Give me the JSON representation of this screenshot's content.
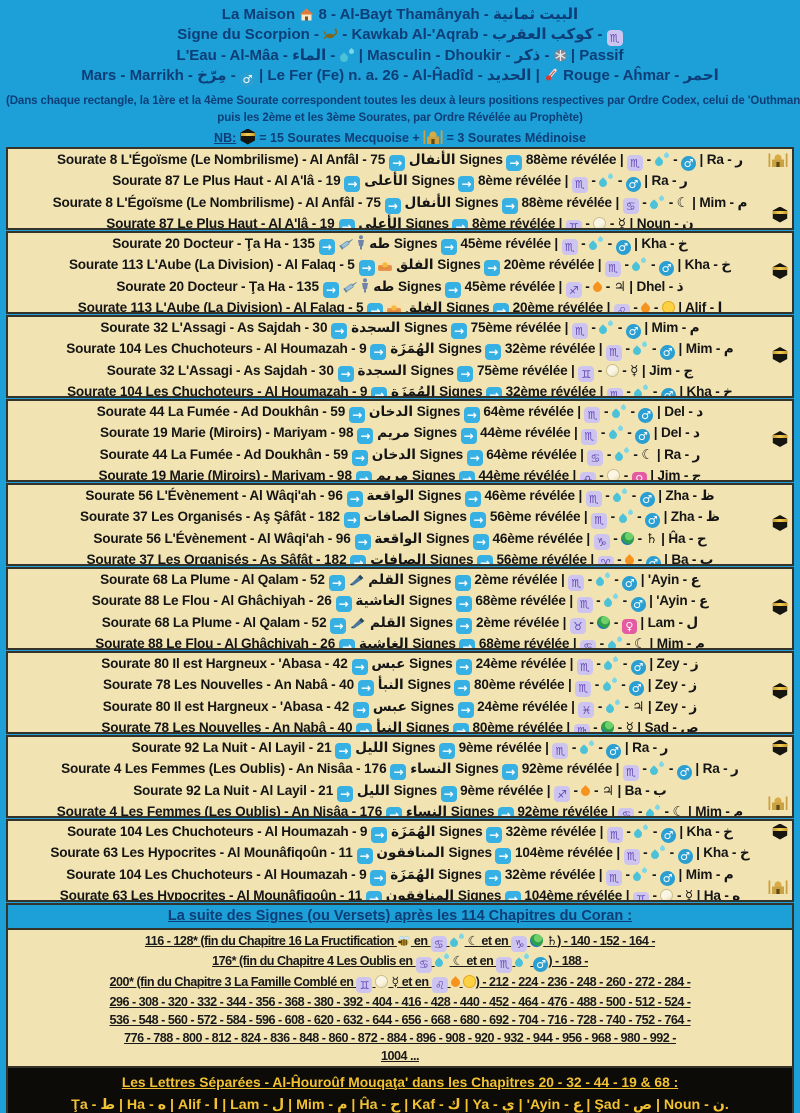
{
  "colors": {
    "blue": "#1d9fd8",
    "navy": "#0d3e77",
    "cream": "#f2e4b2",
    "border": "#35332a",
    "black_band": "#0c0b08",
    "gold": "#f2c233"
  },
  "header": {
    "title_lines": [
      [
        {
          "t": "La Maison "
        },
        {
          "icon": "house-icon"
        },
        {
          "t": " 8 - Al-Bayt Thamânyah - البيت ثمانية"
        }
      ],
      [
        {
          "t": "Signe du Scorpion - "
        },
        {
          "icon": "scorpion-icon"
        },
        {
          "t": " - Kawkab Al-'Aqrab - كوكب العقرب - "
        },
        {
          "icon": "zodiac-scorpio"
        }
      ],
      [
        {
          "t": "L'Eau - Al-Mâa - الماء - "
        },
        {
          "icon": "water-icon"
        },
        {
          "t": " | Masculin - Dhoukir - ذكر - "
        },
        {
          "icon": "masculine-symbol-icon"
        },
        {
          "t": " | Passif"
        }
      ],
      [
        {
          "t": "Mars - Marrikh - مِرّخ - "
        },
        {
          "icon": "mars-icon"
        },
        {
          "t": " | Le Fer (Fe) n. a. 26 - Al-Ĥadîd - الحديد | "
        },
        {
          "icon": "thermometer-icon"
        },
        {
          "t": " Rouge - Aĥmar - احمر"
        }
      ]
    ],
    "note1": "(Dans chaque rectangle, la 1ère et la 4ème Sourate correspondent toutes les deux à leurs positions respectives par Ordre Codex, celui de 'Outhman;",
    "note2": "puis les 2ème et les 3ème Sourates, par Ordre Révélée au Prophète)",
    "nb_line": [
      {
        "t_u": "NB:"
      },
      {
        "t": " "
      },
      {
        "icon": "kaaba-icon"
      },
      {
        "t": " = 15 Sourates Mecquoise + "
      },
      {
        "icon": "mosque-icon"
      },
      {
        "t": " = 3 Sourates Médinoise"
      }
    ]
  },
  "rectangles": [
    {
      "right_icons": [
        {
          "icon": "mosque-icon",
          "pos": "top"
        },
        {
          "icon": "kaaba-icon",
          "pos": "bottom"
        }
      ],
      "rows": [
        {
          "title": "Sourate 8 L'Égoïsme (Le Nombrilisme) - Al Anfâl - الأنفال",
          "title_icons": [],
          "signes": "75 Signes",
          "revelee": "88ème révélée",
          "zodiac": "scorpio",
          "element": "water",
          "planet": "mars",
          "letter": "Ra - ر"
        },
        {
          "title": "Sourate 87 Le Plus Haut - Al A'lâ - الأعلى",
          "title_icons": [],
          "signes": "19 Signes",
          "revelee": "8ème révélée",
          "zodiac": "scorpio",
          "element": "water",
          "planet": "mars",
          "letter": "Ra - ر"
        },
        {
          "title": "Sourate 8 L'Égoïsme (Le Nombrilisme) - Al Anfâl - الأنفال",
          "title_icons": [],
          "signes": "75 Signes",
          "revelee": "88ème révélée",
          "zodiac": "cancer",
          "element": "water",
          "planet": "moon",
          "letter": "Mim - م"
        },
        {
          "title": "Sourate 87 Le Plus Haut - Al A'lâ - الأعلى",
          "title_icons": [],
          "signes": "19 Signes",
          "revelee": "8ème révélée",
          "zodiac": "gemini",
          "element": "air",
          "planet": "mercury",
          "letter": "Noun - ن"
        }
      ]
    },
    {
      "right_icons": [
        {
          "icon": "kaaba-icon",
          "pos": "middle"
        }
      ],
      "rows": [
        {
          "title": "Sourate 20 Docteur - Ţa Ha - طه",
          "title_icons": [
            "person-icon",
            "syringe-icon"
          ],
          "signes": "135 Signes",
          "revelee": "45ème révélée",
          "zodiac": "scorpio",
          "element": "water",
          "planet": "mars",
          "letter": "Kha - خ"
        },
        {
          "title": "Sourate 113 L'Aube (La Division) - Al Falaq - الفلق",
          "title_icons": [
            "sunrise-icon"
          ],
          "signes": "5 Signes",
          "revelee": "20ème révélée",
          "zodiac": "scorpio",
          "element": "water",
          "planet": "mars",
          "letter": "Kha - خ"
        },
        {
          "title": "Sourate 20 Docteur - Ţa Ha - طه",
          "title_icons": [
            "person-icon",
            "syringe-icon"
          ],
          "signes": "135 Signes",
          "revelee": "45ème révélée",
          "zodiac": "sagittarius",
          "element": "fire",
          "planet": "jupiter",
          "letter": "Dhel - ذ"
        },
        {
          "title": "Sourate 113 L'Aube (La Division) - Al Falaq - الفلق",
          "title_icons": [
            "sunrise-icon"
          ],
          "signes": "5 Signes",
          "revelee": "20ème révélée",
          "zodiac": "leo",
          "element": "fire",
          "planet": "sun",
          "letter": "Alif - ا"
        }
      ]
    },
    {
      "right_icons": [
        {
          "icon": "kaaba-icon",
          "pos": "middle"
        }
      ],
      "rows": [
        {
          "title": "Sourate 32 L'Assagi - As Sajdah - السجدة",
          "title_icons": [],
          "signes": "30 Signes",
          "revelee": "75ème révélée",
          "zodiac": "scorpio",
          "element": "water",
          "planet": "mars",
          "letter": "Mim - م"
        },
        {
          "title": "Sourate 104 Les Chuchoteurs - Al Houmazah - الهُمَزَة",
          "title_icons": [],
          "signes": "9 Signes",
          "revelee": "32ème révélée",
          "zodiac": "scorpio",
          "element": "water",
          "planet": "mars",
          "letter": "Mim - م"
        },
        {
          "title": "Sourate 32 L'Assagi - As Sajdah - السجدة",
          "title_icons": [],
          "signes": "30 Signes",
          "revelee": "75ème révélée",
          "zodiac": "gemini",
          "element": "air",
          "planet": "mercury",
          "letter": "Jim - ج"
        },
        {
          "title": "Sourate 104 Les Chuchoteurs - Al Houmazah - الهُمَزَة",
          "title_icons": [],
          "signes": "9 Signes",
          "revelee": "32ème révélée",
          "zodiac": "scorpio",
          "element": "water",
          "planet": "mars",
          "letter": "Kha - خ"
        }
      ]
    },
    {
      "right_icons": [
        {
          "icon": "kaaba-icon",
          "pos": "middle"
        }
      ],
      "rows": [
        {
          "title": "Sourate 44 La Fumée - Ad Doukhân - الدخان",
          "title_icons": [],
          "signes": "59 Signes",
          "revelee": "64ème révélée",
          "zodiac": "scorpio",
          "element": "water",
          "planet": "mars",
          "letter": "Del - د"
        },
        {
          "title": "Sourate 19 Marie (Miroirs) - Mariyam - مريم",
          "title_icons": [],
          "signes": "98 Signes",
          "revelee": "44ème révélée",
          "zodiac": "scorpio",
          "element": "water",
          "planet": "mars",
          "letter": "Del - د"
        },
        {
          "title": "Sourate 44 La Fumée - Ad Doukhân - الدخان",
          "title_icons": [],
          "signes": "59 Signes",
          "revelee": "64ème révélée",
          "zodiac": "cancer",
          "element": "water",
          "planet": "moon",
          "letter": "Ra - ر"
        },
        {
          "title": "Sourate 19 Marie (Miroirs) - Mariyam - مريم",
          "title_icons": [],
          "signes": "98 Signes",
          "revelee": "44ème révélée",
          "zodiac": "libra",
          "element": "air",
          "planet": "venus",
          "letter": "Jim - ج"
        }
      ]
    },
    {
      "right_icons": [
        {
          "icon": "kaaba-icon",
          "pos": "middle"
        }
      ],
      "rows": [
        {
          "title": "Sourate 56 L'Évènement - Al Wâqi'ah - الواقعة",
          "title_icons": [],
          "signes": "96 Signes",
          "revelee": "46ème révélée",
          "zodiac": "scorpio",
          "element": "water",
          "planet": "mars",
          "letter": "Zha - ظ"
        },
        {
          "title": "Sourate 37 Les Organisés - Aş Şâfât - الصافات",
          "title_icons": [],
          "signes": "182 Signes",
          "revelee": "56ème révélée",
          "zodiac": "scorpio",
          "element": "water",
          "planet": "mars",
          "letter": "Zha - ظ"
        },
        {
          "title": "Sourate 56 L'Évènement - Al Wâqi'ah - الواقعة",
          "title_icons": [],
          "signes": "96 Signes",
          "revelee": "46ème révélée",
          "zodiac": "capricorn",
          "element": "earth",
          "planet": "saturn",
          "letter": "Ĥa - ح"
        },
        {
          "title": "Sourate 37 Les Organisés - Aş Şâfât - الصافات",
          "title_icons": [],
          "signes": "182 Signes",
          "revelee": "56ème révélée",
          "zodiac": "aries",
          "element": "fire",
          "planet": "mars",
          "letter": "Ba - ب"
        }
      ]
    },
    {
      "right_icons": [
        {
          "icon": "kaaba-icon",
          "pos": "middle"
        }
      ],
      "rows": [
        {
          "title": "Sourate 68 La Plume - Al Qalam - القلم",
          "title_icons": [
            "pen-icon"
          ],
          "signes": "52 Signes",
          "revelee": "2ème révélée",
          "zodiac": "scorpio",
          "element": "water",
          "planet": "mars",
          "letter": "'Ayin - ع"
        },
        {
          "title": "Sourate 88 Le Flou - Al Ghâchiyah - الغاشية",
          "title_icons": [],
          "signes": "26 Signes",
          "revelee": "68ème révélée",
          "zodiac": "scorpio",
          "element": "water",
          "planet": "mars",
          "letter": "'Ayin - ع"
        },
        {
          "title": "Sourate 68 La Plume - Al Qalam - القلم",
          "title_icons": [
            "pen-icon"
          ],
          "signes": "52 Signes",
          "revelee": "2ème révélée",
          "zodiac": "taurus",
          "element": "earth",
          "planet": "venus",
          "letter": "Lam - ل"
        },
        {
          "title": "Sourate 88 Le Flou - Al Ghâchiyah - الغاشية",
          "title_icons": [],
          "signes": "26 Signes",
          "revelee": "68ème révélée",
          "zodiac": "cancer",
          "element": "water",
          "planet": "moon",
          "letter": "Mim - م"
        }
      ]
    },
    {
      "right_icons": [
        {
          "icon": "kaaba-icon",
          "pos": "middle"
        }
      ],
      "rows": [
        {
          "title": "Sourate 80 Il est Hargneux - 'Abasa - عبس",
          "title_icons": [],
          "signes": "42 Signes",
          "revelee": "24ème révélée",
          "zodiac": "scorpio",
          "element": "water",
          "planet": "mars",
          "letter": "Zey - ز"
        },
        {
          "title": "Sourate 78 Les Nouvelles - An Nabâ - النبأ",
          "title_icons": [],
          "signes": "40 Signes",
          "revelee": "80ème révélée",
          "zodiac": "scorpio",
          "element": "water",
          "planet": "mars",
          "letter": "Zey - ز"
        },
        {
          "title": "Sourate 80 Il est Hargneux - 'Abasa - عبس",
          "title_icons": [],
          "signes": "42 Signes",
          "revelee": "24ème révélée",
          "zodiac": "pisces",
          "element": "water",
          "planet": "jupiter",
          "letter": "Zey - ز"
        },
        {
          "title": "Sourate 78 Les Nouvelles - An Nabâ - النبأ",
          "title_icons": [],
          "signes": "40 Signes",
          "revelee": "80ème révélée",
          "zodiac": "virgo",
          "element": "earth",
          "planet": "mercury",
          "letter": "Şad - ص"
        }
      ]
    },
    {
      "right_icons": [
        {
          "icon": "kaaba-icon",
          "pos": "top"
        },
        {
          "icon": "mosque-icon",
          "pos": "bottom"
        }
      ],
      "rows": [
        {
          "title": "Sourate 92 La Nuit - Al Layil - الليل",
          "title_icons": [],
          "signes": "21 Signes",
          "revelee": "9ème révélée",
          "zodiac": "scorpio",
          "element": "water",
          "planet": "mars",
          "letter": "Ra - ر"
        },
        {
          "title": "Sourate 4 Les Femmes (Les Oublis) - An Nisâa - النساء",
          "title_icons": [],
          "signes": "176 Signes",
          "revelee": "92ème révélée",
          "zodiac": "scorpio",
          "element": "water",
          "planet": "mars",
          "letter": "Ra - ر"
        },
        {
          "title": "Sourate 92 La Nuit - Al Layil - الليل",
          "title_icons": [],
          "signes": "21 Signes",
          "revelee": "9ème révélée",
          "zodiac": "sagittarius",
          "element": "fire",
          "planet": "jupiter",
          "letter": "Ba - ب"
        },
        {
          "title": "Sourate 4 Les Femmes (Les Oublis) - An Nisâa - النساء",
          "title_icons": [],
          "signes": "176 Signes",
          "revelee": "92ème révélée",
          "zodiac": "cancer",
          "element": "water",
          "planet": "moon",
          "letter": "Mim - م"
        }
      ]
    },
    {
      "right_icons": [
        {
          "icon": "kaaba-icon",
          "pos": "top"
        },
        {
          "icon": "mosque-icon",
          "pos": "bottom"
        }
      ],
      "rows": [
        {
          "title": "Sourate 104 Les Chuchoteurs - Al Houmazah - الهُمَزَة",
          "title_icons": [],
          "signes": "9 Signes",
          "revelee": "32ème révélée",
          "zodiac": "scorpio",
          "element": "water",
          "planet": "mars",
          "letter": "Kha - خ"
        },
        {
          "title": "Sourate 63 Les Hypocrites - Al Mounâfiqoûn - المنافقون",
          "title_icons": [],
          "signes": "11 Signes",
          "revelee": "104ème révélée",
          "zodiac": "scorpio",
          "element": "water",
          "planet": "mars",
          "letter": "Kha - خ"
        },
        {
          "title": "Sourate 104 Les Chuchoteurs - Al Houmazah - الهُمَزَة",
          "title_icons": [],
          "signes": "9 Signes",
          "revelee": "32ème révélée",
          "zodiac": "scorpio",
          "element": "water",
          "planet": "mars",
          "letter": "Mim - م"
        },
        {
          "title": "Sourate 63 Les Hypocrites - Al Mounâfiqoûn - المنافقون",
          "title_icons": [],
          "signes": "11 Signes",
          "revelee": "104ème révélée",
          "zodiac": "gemini",
          "element": "air",
          "planet": "mercury",
          "letter": "Ha - ه"
        }
      ]
    }
  ],
  "bottom": {
    "suite_title": "La suite des Signes (ou Versets) après les 114 Chapitres du Coran :",
    "number_lines": [
      [
        {
          "t": "116 - 128* (fin du Chapitre 16 La Fructification "
        },
        {
          "icon": "bee-icon"
        },
        {
          "t": " en "
        },
        {
          "icon": "zodiac-cancer"
        },
        {
          "t": " "
        },
        {
          "icon": "water-icon"
        },
        {
          "t": " "
        },
        {
          "icon": "moon-icon"
        },
        {
          "t": " et en "
        },
        {
          "icon": "zodiac-capricorn"
        },
        {
          "t": " "
        },
        {
          "icon": "earth-icon"
        },
        {
          "t": " "
        },
        {
          "icon": "saturn-icon"
        },
        {
          "t": ") - 140 - 152 - 164 -"
        }
      ],
      [
        {
          "t": "176* (fin du Chapitre 4 Les Oublis en "
        },
        {
          "icon": "zodiac-cancer"
        },
        {
          "t": " "
        },
        {
          "icon": "water-icon"
        },
        {
          "t": " "
        },
        {
          "icon": "moon-icon"
        },
        {
          "t": " et en "
        },
        {
          "icon": "zodiac-scorpio"
        },
        {
          "t": " "
        },
        {
          "icon": "water-icon"
        },
        {
          "t": " "
        },
        {
          "icon": "mars-icon"
        },
        {
          "t": ") - 188 -"
        }
      ],
      [
        {
          "t": "200* (fin du Chapitre 3 La Famille Comblé en "
        },
        {
          "icon": "zodiac-gemini"
        },
        {
          "t": " "
        },
        {
          "icon": "air-icon"
        },
        {
          "t": " "
        },
        {
          "icon": "mercury-icon"
        },
        {
          "t": " et en "
        },
        {
          "icon": "zodiac-leo"
        },
        {
          "t": " "
        },
        {
          "icon": "fire-icon"
        },
        {
          "t": " "
        },
        {
          "icon": "sun-icon"
        },
        {
          "t": ") - 212 - 224 - 236 - 248 - 260 - 272 - 284 -"
        }
      ],
      [
        {
          "t": "296 - 308 - 320 - 332 - 344 - 356 - 368 - 380 - 392 - 404 - 416 - 428 - 440 - 452 - 464 - 476 - 488 - 500 - 512 - 524 -"
        }
      ],
      [
        {
          "t": "536 - 548 - 560 - 572 - 584 - 596 - 608 - 620 - 632 - 644 - 656 - 668 - 680 - 692 - 704 - 716 - 728 - 740 - 752 - 764 -"
        }
      ],
      [
        {
          "t": "776 - 788 - 800 - 812 - 824 - 836 - 848 - 860 - 872 - 884 - 896 - 908 - 920 - 932 - 944 - 956 - 968 - 980 - 992 -"
        }
      ],
      [
        {
          "t": "1004 ..."
        }
      ]
    ],
    "letters_title": "Les Lettres Séparées - Al-Ĥouroûf Mouqaţa' dans les Chapitres 20 - 32 - 44 - 19 & 68 :",
    "letters_line": "Ţa - ط | Ha - ه | Alif - ا | Lam - ل | Mim - م | Ĥa - ح | Kaf - ك | Ya - ي | 'Ayin - ع | Şad - ص | Noun - ن."
  }
}
